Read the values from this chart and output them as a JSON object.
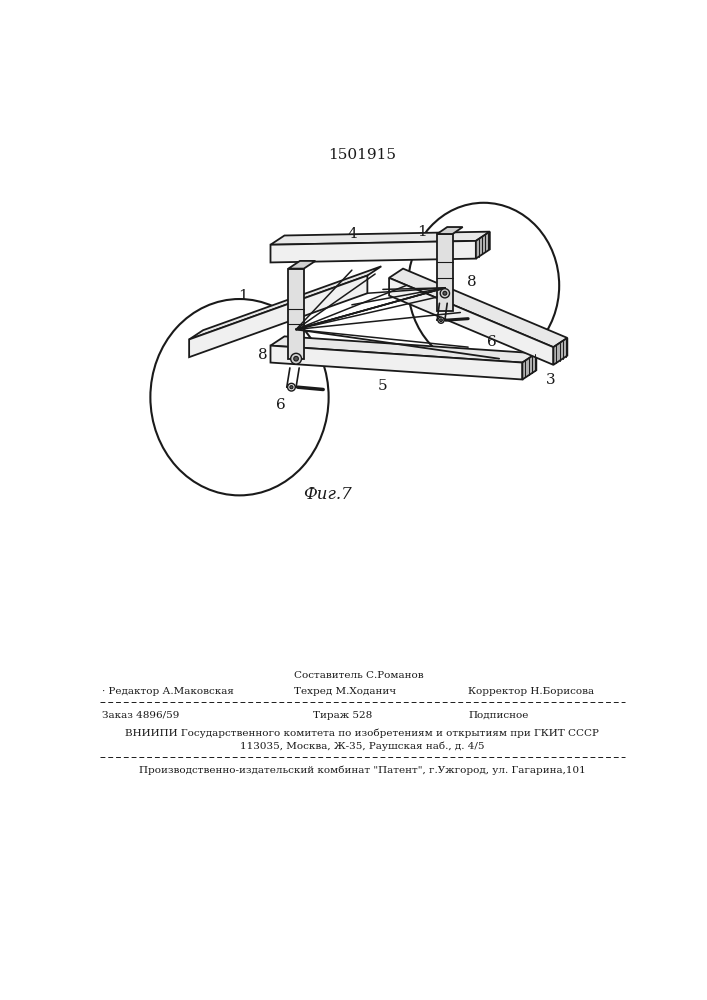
{
  "patent_number": "1501915",
  "fig_label": "Фиг.7",
  "bg_color": "#ffffff",
  "line_color": "#1a1a1a",
  "footer": {
    "row1_col2_top": "Составитель С.Романов",
    "row1_col1": "· Редактор А.Маковская",
    "row1_col2b": "Техред М.Ходанич",
    "row1_col3": "Корректор Н.Борисова",
    "row2_col1": "Заказ 4896/59",
    "row2_col2": "Тираж 528",
    "row2_col3": "Подписное",
    "row3": "ВНИИПИ Государственного комитета по изобретениям и открытиям при ГКИТ СССР",
    "row4": "113035, Москва, Ж-35, Раушская наб., д. 4/5",
    "row5": "Производственно-издательский комбинат \"Патент\", г.Ужгород, ул. Гагарина,101"
  }
}
